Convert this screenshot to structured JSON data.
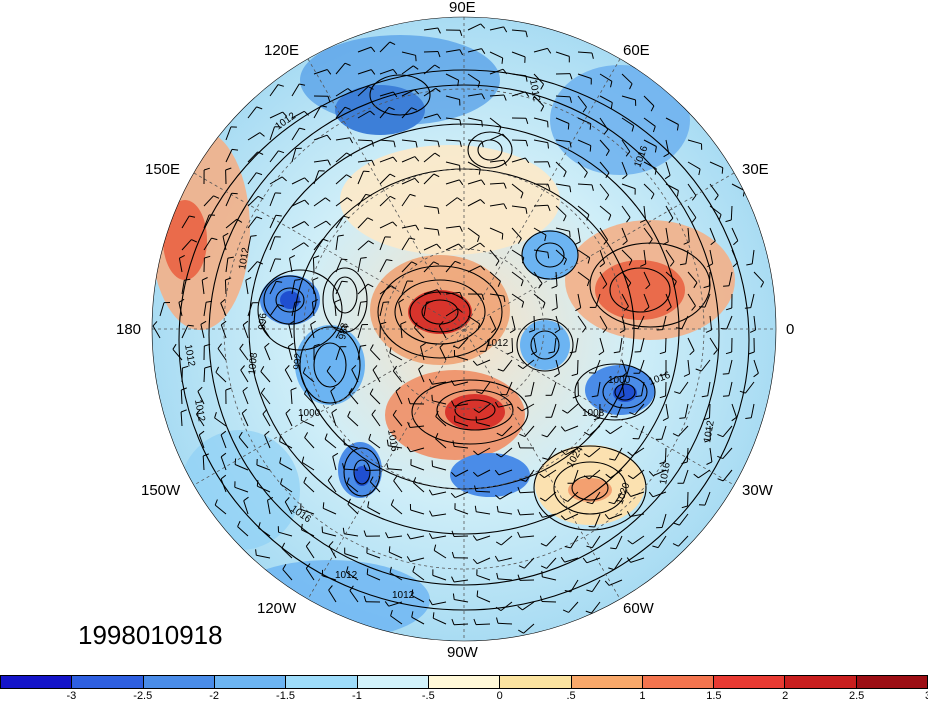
{
  "map": {
    "projection": "polar stereographic (northern hemisphere)",
    "longitude_labels": [
      "90E",
      "60E",
      "30E",
      "0",
      "30W",
      "60W",
      "90W",
      "120W",
      "150W",
      "180",
      "150E",
      "120E"
    ],
    "contour_labels": [
      "1012",
      "1012",
      "1012",
      "1012",
      "1008",
      "996",
      "992",
      "988",
      "1000",
      "1016",
      "1012",
      "1008",
      "1000",
      "1016",
      "1024",
      "1020",
      "1016",
      "1012",
      "1012",
      "1016",
      "1012",
      "1016",
      "1012"
    ],
    "colors": {
      "ocean_light_blue": "#b9e6f5",
      "positive_red": "#e0473a",
      "negative_blue": "#3d8fe0",
      "contour": "#000000"
    }
  },
  "datestamp": "1998010918",
  "colorbar": {
    "colors": [
      "#1414c8",
      "#2e5fe0",
      "#4a8ce8",
      "#6cb4f2",
      "#9edcfa",
      "#d2f2fb",
      "#fff8d8",
      "#fbe3a0",
      "#f8a86a",
      "#f3744e",
      "#e83a32",
      "#c81e1e",
      "#9c0e14"
    ],
    "tick_labels": [
      "-3",
      "-2.5",
      "-2",
      "-1.5",
      "-1",
      "-.5",
      "0",
      ".5",
      "1",
      "1.5",
      "2",
      "2.5",
      "3"
    ]
  }
}
